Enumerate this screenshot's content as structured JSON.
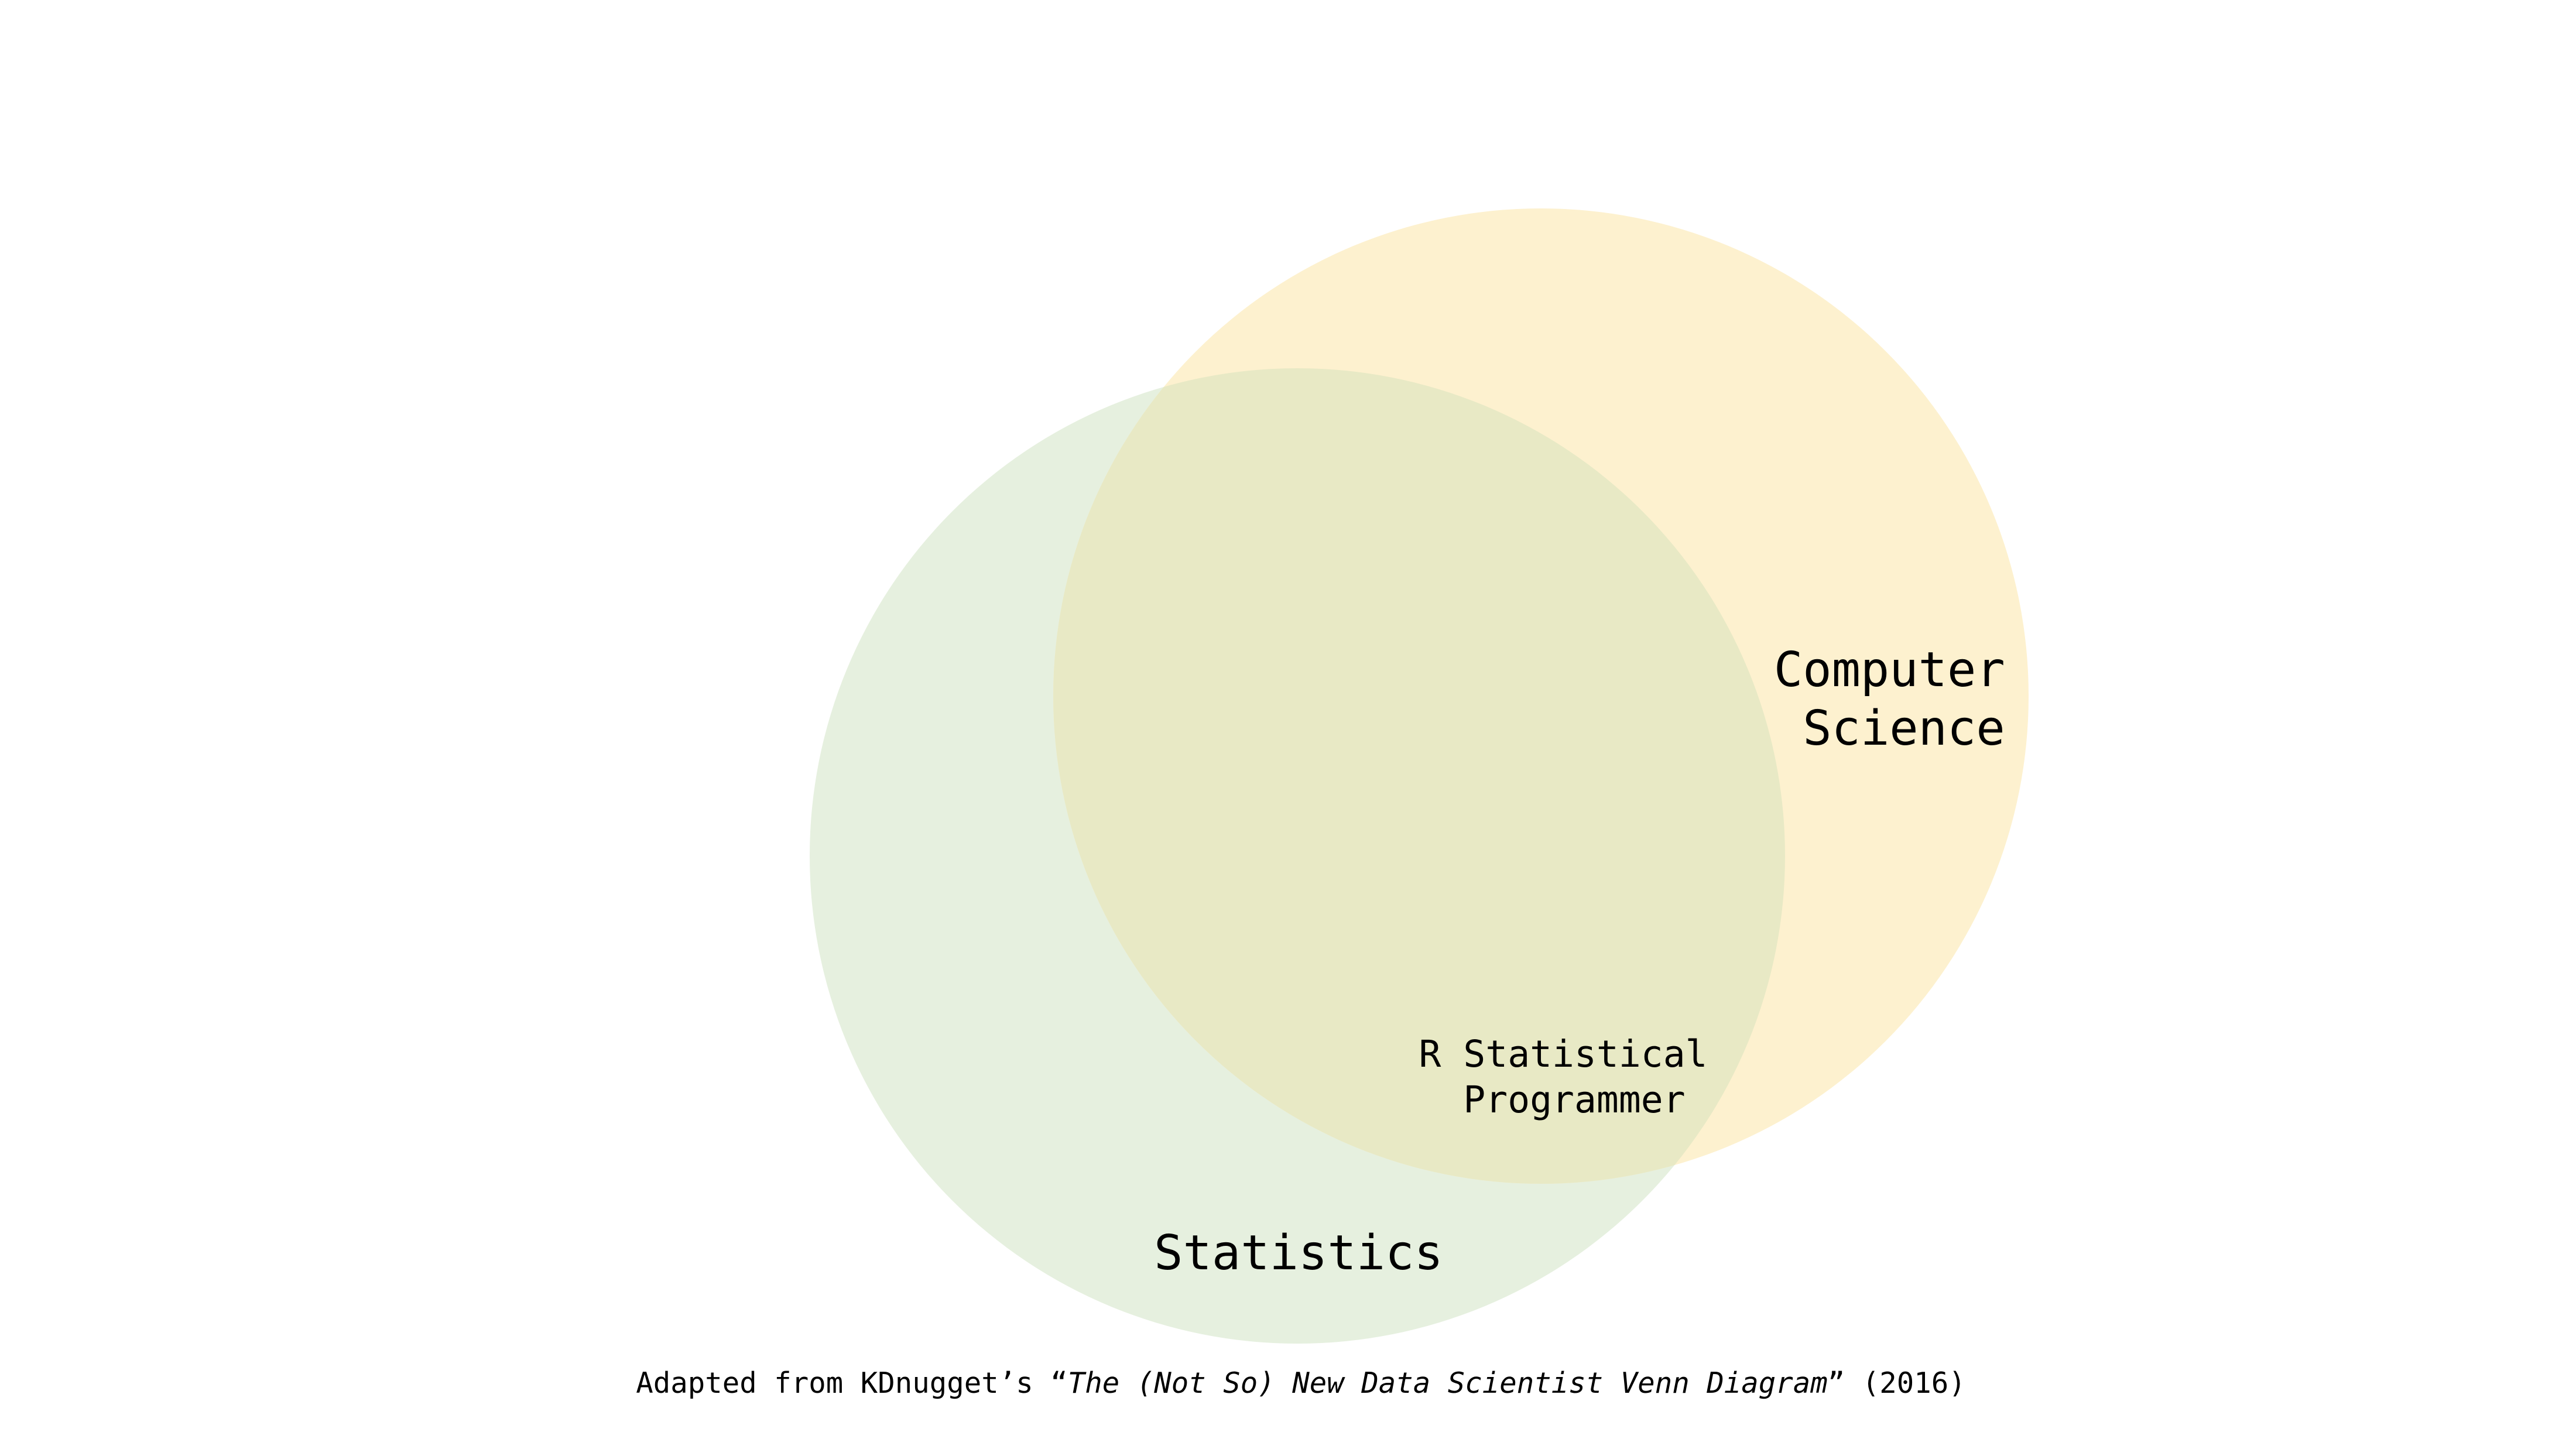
{
  "venn": {
    "sets": [
      {
        "key": "statistics",
        "label": [
          "Statistics"
        ],
        "color": "#e6f0df"
      },
      {
        "key": "computer_science",
        "label": [
          "Computer",
          "Science"
        ],
        "color": "#fdf1cf"
      }
    ],
    "intersection": {
      "label": [
        "R Statistical",
        "Programmer"
      ],
      "color": "#e8e9c5"
    }
  },
  "caption": {
    "prefix": "Adapted from KDnugget’s “",
    "title": "The (Not So) New Data Scientist Venn Diagram",
    "suffix": "” (2016)"
  },
  "colors": {
    "text": "#000000",
    "background": "#ffffff"
  }
}
